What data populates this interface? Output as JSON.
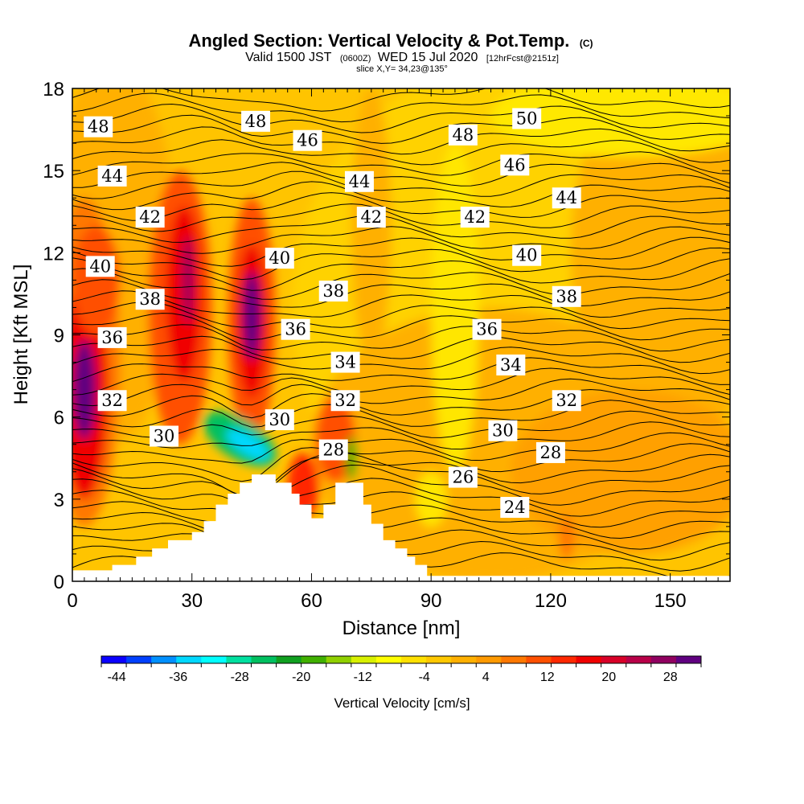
{
  "title": {
    "main": "Angled Section: Vertical Velocity & Pot.Temp.",
    "main_suffix": "(C)",
    "valid_prefix": "Valid 1500 JST",
    "valid_utc": "(0600Z)",
    "valid_date": "WED 15 Jul 2020",
    "valid_fcst": "[12hrFcst@2151z]",
    "slice": "slice X,Y= 34,23@135°"
  },
  "chart_data": {
    "type": "heatmap",
    "xlabel": "Distance [nm]",
    "ylabel": "Height [Kft MSL]",
    "xlim": [
      0,
      165
    ],
    "ylim": [
      0,
      18
    ],
    "x_ticks": [
      0,
      30,
      60,
      90,
      120,
      150
    ],
    "y_ticks": [
      0,
      3,
      6,
      9,
      12,
      15,
      18
    ],
    "colorbar": {
      "title": "Vertical Velocity [cm/s]",
      "range": [
        -46,
        32
      ],
      "tick_labels": [
        "-44",
        "-36",
        "-28",
        "-20",
        "-12",
        "-4",
        "4",
        "12",
        "20",
        "28"
      ],
      "tick_values": [
        -44,
        -36,
        -28,
        -20,
        -12,
        -4,
        4,
        12,
        20,
        28
      ],
      "colors": [
        "#0a00ff",
        "#0040ff",
        "#0090ff",
        "#00d8ff",
        "#00ffff",
        "#00e0a0",
        "#00c060",
        "#10a020",
        "#40b000",
        "#90d000",
        "#d8f000",
        "#ffff00",
        "#ffe000",
        "#ffc800",
        "#ffb000",
        "#ff9a00",
        "#ff7800",
        "#ff5000",
        "#ff2800",
        "#f00000",
        "#d80028",
        "#b80048",
        "#900060",
        "#600080"
      ]
    },
    "terrain_nm_kft": [
      [
        0,
        0.4
      ],
      [
        10,
        0.6
      ],
      [
        13,
        0.6
      ],
      [
        16,
        0.9
      ],
      [
        20,
        1.2
      ],
      [
        24,
        1.5
      ],
      [
        30,
        1.8
      ],
      [
        33,
        2.2
      ],
      [
        36,
        2.8
      ],
      [
        39,
        3.2
      ],
      [
        42,
        3.6
      ],
      [
        45,
        3.9
      ],
      [
        48,
        3.9
      ],
      [
        51,
        3.6
      ],
      [
        55,
        3.2
      ],
      [
        57,
        2.8
      ],
      [
        60,
        2.3
      ],
      [
        63,
        2.8
      ],
      [
        66,
        3.6
      ],
      [
        70,
        3.6
      ],
      [
        73,
        2.8
      ],
      [
        75,
        2.1
      ],
      [
        78,
        1.5
      ],
      [
        81,
        1.2
      ],
      [
        84,
        0.9
      ],
      [
        86,
        0.6
      ],
      [
        89,
        0.2
      ],
      [
        165,
        0.2
      ]
    ],
    "theta_contour_labels": [
      {
        "text": "48",
        "x": 6.5,
        "y": 16.6
      },
      {
        "text": "48",
        "x": 46,
        "y": 16.8
      },
      {
        "text": "46",
        "x": 59,
        "y": 16.1
      },
      {
        "text": "48",
        "x": 98,
        "y": 16.3
      },
      {
        "text": "50",
        "x": 114,
        "y": 16.9
      },
      {
        "text": "44",
        "x": 10,
        "y": 14.8
      },
      {
        "text": "46",
        "x": 111,
        "y": 15.2
      },
      {
        "text": "44",
        "x": 72,
        "y": 14.6
      },
      {
        "text": "44",
        "x": 124,
        "y": 14.0
      },
      {
        "text": "42",
        "x": 19.5,
        "y": 13.3
      },
      {
        "text": "42",
        "x": 75,
        "y": 13.3
      },
      {
        "text": "42",
        "x": 101,
        "y": 13.3
      },
      {
        "text": "40",
        "x": 7,
        "y": 11.5
      },
      {
        "text": "40",
        "x": 52,
        "y": 11.8
      },
      {
        "text": "40",
        "x": 114,
        "y": 11.9
      },
      {
        "text": "38",
        "x": 19.5,
        "y": 10.3
      },
      {
        "text": "38",
        "x": 65.5,
        "y": 10.6
      },
      {
        "text": "38",
        "x": 124,
        "y": 10.4
      },
      {
        "text": "36",
        "x": 10,
        "y": 8.9
      },
      {
        "text": "36",
        "x": 56,
        "y": 9.2
      },
      {
        "text": "36",
        "x": 104,
        "y": 9.2
      },
      {
        "text": "34",
        "x": 68.5,
        "y": 8.0
      },
      {
        "text": "34",
        "x": 110,
        "y": 7.9
      },
      {
        "text": "32",
        "x": 10,
        "y": 6.6
      },
      {
        "text": "32",
        "x": 68.5,
        "y": 6.6
      },
      {
        "text": "32",
        "x": 124,
        "y": 6.6
      },
      {
        "text": "30",
        "x": 23,
        "y": 5.3
      },
      {
        "text": "30",
        "x": 52,
        "y": 5.9
      },
      {
        "text": "30",
        "x": 108,
        "y": 5.5
      },
      {
        "text": "28",
        "x": 65.5,
        "y": 4.8
      },
      {
        "text": "28",
        "x": 120,
        "y": 4.7
      },
      {
        "text": "26",
        "x": 98,
        "y": 3.8
      },
      {
        "text": "24",
        "x": 111,
        "y": 2.7
      }
    ]
  }
}
